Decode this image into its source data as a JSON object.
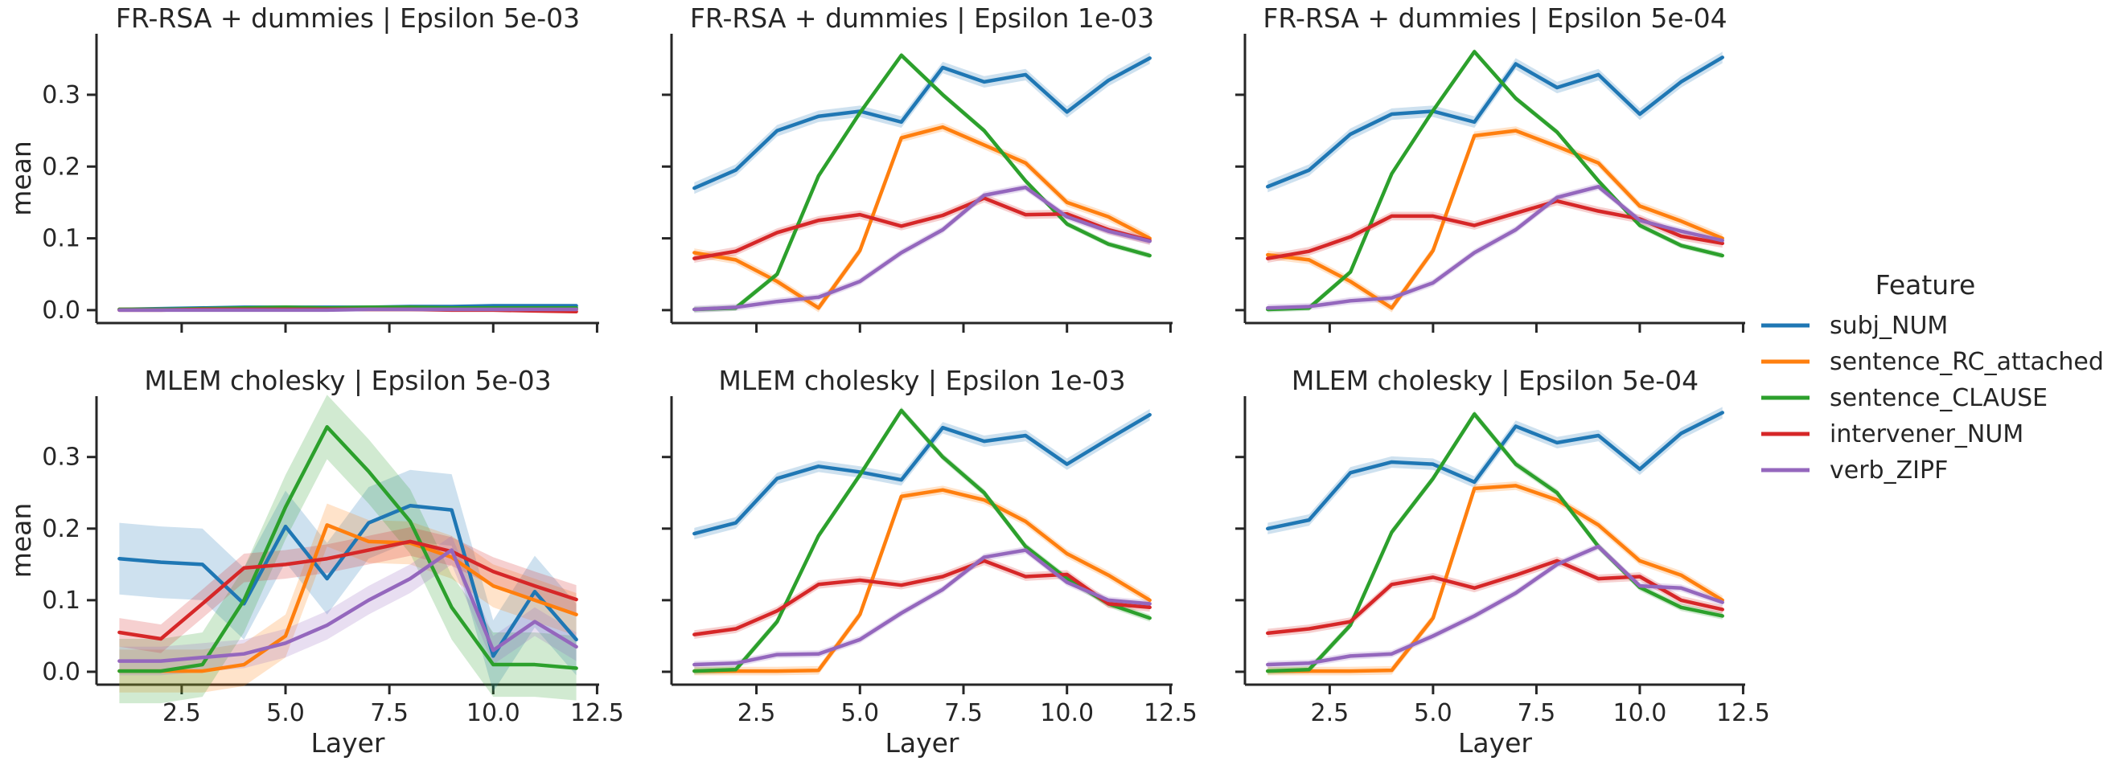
{
  "legend": {
    "title": "Feature",
    "placement": "center-right",
    "items": [
      {
        "name": "subj_NUM",
        "color": "#1f77b4"
      },
      {
        "name": "sentence_RC_attached",
        "color": "#ff7f0e"
      },
      {
        "name": "sentence_CLAUSE",
        "color": "#2ca02c"
      },
      {
        "name": "intervener_NUM",
        "color": "#d62728"
      },
      {
        "name": "verb_ZIPF",
        "color": "#9467bd"
      }
    ]
  },
  "chart_data": [
    {
      "type": "line",
      "title": "FR-RSA + dummies | Epsilon 5e-03",
      "xlabel": "",
      "ylabel": "mean",
      "xlim": [
        0.45,
        12.55
      ],
      "ylim": [
        -0.018,
        0.385
      ],
      "xticks": [
        "2.5",
        "5.0",
        "7.5",
        "10.0",
        "12.5"
      ],
      "yticks": [
        "0.0",
        "0.1",
        "0.2",
        "0.3"
      ],
      "x": [
        1,
        2,
        3,
        4,
        5,
        6,
        7,
        8,
        9,
        10,
        11,
        12
      ],
      "series": [
        {
          "name": "subj_NUM",
          "values": [
            0.001,
            0.002,
            0.003,
            0.004,
            0.004,
            0.004,
            0.004,
            0.005,
            0.005,
            0.006,
            0.006,
            0.006
          ],
          "band": 0.002
        },
        {
          "name": "sentence_RC_attached",
          "values": [
            0.001,
            0.001,
            0.001,
            0.001,
            0.001,
            0.001,
            0.001,
            0.001,
            0.001,
            0.001,
            0.001,
            0.001
          ],
          "band": 0.001
        },
        {
          "name": "sentence_CLAUSE",
          "values": [
            0.001,
            0.001,
            0.002,
            0.003,
            0.004,
            0.003,
            0.004,
            0.004,
            0.003,
            0.003,
            0.003,
            0.003
          ],
          "band": 0.001
        },
        {
          "name": "intervener_NUM",
          "values": [
            0.0,
            0.0,
            0.001,
            0.001,
            0.001,
            0.001,
            0.001,
            0.001,
            0.0,
            0.0,
            -0.001,
            -0.002
          ],
          "band": 0.001
        },
        {
          "name": "verb_ZIPF",
          "values": [
            0.0,
            0.0,
            0.0,
            0.0,
            0.0,
            0.0,
            0.001,
            0.001,
            0.001,
            0.001,
            0.001,
            0.001
          ],
          "band": 0.001
        }
      ]
    },
    {
      "type": "line",
      "title": "FR-RSA + dummies | Epsilon 1e-03",
      "xlabel": "",
      "ylabel": "",
      "xlim": [
        0.45,
        12.55
      ],
      "ylim": [
        -0.018,
        0.385
      ],
      "xticks": [
        "2.5",
        "5.0",
        "7.5",
        "10.0",
        "12.5"
      ],
      "yticks": [
        "0.0",
        "0.1",
        "0.2",
        "0.3"
      ],
      "x": [
        1,
        2,
        3,
        4,
        5,
        6,
        7,
        8,
        9,
        10,
        11,
        12
      ],
      "series": [
        {
          "name": "subj_NUM",
          "values": [
            0.17,
            0.195,
            0.25,
            0.27,
            0.277,
            0.262,
            0.338,
            0.318,
            0.328,
            0.276,
            0.32,
            0.351
          ],
          "band": 0.008
        },
        {
          "name": "sentence_RC_attached",
          "values": [
            0.08,
            0.07,
            0.04,
            0.003,
            0.083,
            0.24,
            0.255,
            0.23,
            0.205,
            0.15,
            0.13,
            0.1
          ],
          "band": 0.006
        },
        {
          "name": "sentence_CLAUSE",
          "values": [
            0.001,
            0.003,
            0.05,
            0.187,
            0.275,
            0.355,
            0.3,
            0.25,
            0.18,
            0.12,
            0.092,
            0.076
          ],
          "band": 0.004
        },
        {
          "name": "intervener_NUM",
          "values": [
            0.072,
            0.082,
            0.108,
            0.125,
            0.133,
            0.117,
            0.132,
            0.156,
            0.133,
            0.134,
            0.112,
            0.097
          ],
          "band": 0.006
        },
        {
          "name": "verb_ZIPF",
          "values": [
            0.001,
            0.004,
            0.012,
            0.018,
            0.04,
            0.08,
            0.112,
            0.16,
            0.171,
            0.13,
            0.11,
            0.096
          ],
          "band": 0.005
        }
      ]
    },
    {
      "type": "line",
      "title": "FR-RSA + dummies | Epsilon 5e-04",
      "xlabel": "",
      "ylabel": "",
      "xlim": [
        0.45,
        12.55
      ],
      "ylim": [
        -0.018,
        0.385
      ],
      "xticks": [
        "2.5",
        "5.0",
        "7.5",
        "10.0",
        "12.5"
      ],
      "yticks": [
        "0.0",
        "0.1",
        "0.2",
        "0.3"
      ],
      "x": [
        1,
        2,
        3,
        4,
        5,
        6,
        7,
        8,
        9,
        10,
        11,
        12
      ],
      "series": [
        {
          "name": "subj_NUM",
          "values": [
            0.172,
            0.195,
            0.245,
            0.273,
            0.277,
            0.262,
            0.343,
            0.31,
            0.328,
            0.273,
            0.318,
            0.352
          ],
          "band": 0.008
        },
        {
          "name": "sentence_RC_attached",
          "values": [
            0.077,
            0.07,
            0.04,
            0.003,
            0.083,
            0.243,
            0.25,
            0.228,
            0.205,
            0.145,
            0.124,
            0.1
          ],
          "band": 0.006
        },
        {
          "name": "sentence_CLAUSE",
          "values": [
            0.001,
            0.003,
            0.053,
            0.19,
            0.278,
            0.36,
            0.295,
            0.248,
            0.18,
            0.118,
            0.09,
            0.076
          ],
          "band": 0.004
        },
        {
          "name": "intervener_NUM",
          "values": [
            0.072,
            0.082,
            0.102,
            0.131,
            0.131,
            0.118,
            0.135,
            0.152,
            0.138,
            0.127,
            0.103,
            0.093
          ],
          "band": 0.006
        },
        {
          "name": "verb_ZIPF",
          "values": [
            0.003,
            0.005,
            0.013,
            0.017,
            0.038,
            0.08,
            0.112,
            0.157,
            0.172,
            0.125,
            0.11,
            0.097
          ],
          "band": 0.005
        }
      ]
    },
    {
      "type": "line",
      "title": "MLEM cholesky | Epsilon 5e-03",
      "xlabel": "Layer",
      "ylabel": "mean",
      "xlim": [
        0.45,
        12.55
      ],
      "ylim": [
        -0.018,
        0.385
      ],
      "xticks": [
        "2.5",
        "5.0",
        "7.5",
        "10.0",
        "12.5"
      ],
      "yticks": [
        "0.0",
        "0.1",
        "0.2",
        "0.3"
      ],
      "x": [
        1,
        2,
        3,
        4,
        5,
        6,
        7,
        8,
        9,
        10,
        11,
        12
      ],
      "series": [
        {
          "name": "subj_NUM",
          "values": [
            0.158,
            0.153,
            0.15,
            0.095,
            0.203,
            0.13,
            0.208,
            0.232,
            0.226,
            0.022,
            0.112,
            0.045
          ],
          "band": 0.05
        },
        {
          "name": "sentence_RC_attached",
          "values": [
            0.001,
            0.001,
            0.001,
            0.01,
            0.05,
            0.205,
            0.182,
            0.18,
            0.16,
            0.12,
            0.1,
            0.08
          ],
          "band": 0.03
        },
        {
          "name": "sentence_CLAUSE",
          "values": [
            0.001,
            0.001,
            0.01,
            0.1,
            0.23,
            0.342,
            0.28,
            0.21,
            0.09,
            0.01,
            0.01,
            0.005
          ],
          "band": 0.045
        },
        {
          "name": "intervener_NUM",
          "values": [
            0.055,
            0.046,
            0.095,
            0.145,
            0.15,
            0.158,
            0.17,
            0.182,
            0.168,
            0.14,
            0.12,
            0.101
          ],
          "band": 0.02
        },
        {
          "name": "verb_ZIPF",
          "values": [
            0.015,
            0.015,
            0.02,
            0.025,
            0.04,
            0.065,
            0.1,
            0.13,
            0.17,
            0.03,
            0.07,
            0.035
          ],
          "band": 0.02
        }
      ]
    },
    {
      "type": "line",
      "title": "MLEM cholesky | Epsilon 1e-03",
      "xlabel": "Layer",
      "ylabel": "",
      "xlim": [
        0.45,
        12.55
      ],
      "ylim": [
        -0.018,
        0.385
      ],
      "xticks": [
        "2.5",
        "5.0",
        "7.5",
        "10.0",
        "12.5"
      ],
      "yticks": [
        "0.0",
        "0.1",
        "0.2",
        "0.3"
      ],
      "x": [
        1,
        2,
        3,
        4,
        5,
        6,
        7,
        8,
        9,
        10,
        11,
        12
      ],
      "series": [
        {
          "name": "subj_NUM",
          "values": [
            0.193,
            0.208,
            0.27,
            0.287,
            0.279,
            0.268,
            0.341,
            0.322,
            0.33,
            0.29,
            0.325,
            0.359
          ],
          "band": 0.008
        },
        {
          "name": "sentence_RC_attached",
          "values": [
            0.001,
            0.001,
            0.001,
            0.002,
            0.08,
            0.245,
            0.254,
            0.24,
            0.21,
            0.165,
            0.135,
            0.1
          ],
          "band": 0.006
        },
        {
          "name": "sentence_CLAUSE",
          "values": [
            0.001,
            0.003,
            0.07,
            0.19,
            0.275,
            0.365,
            0.3,
            0.25,
            0.175,
            0.13,
            0.095,
            0.075
          ],
          "band": 0.005
        },
        {
          "name": "intervener_NUM",
          "values": [
            0.052,
            0.06,
            0.085,
            0.122,
            0.128,
            0.121,
            0.133,
            0.155,
            0.133,
            0.136,
            0.095,
            0.09
          ],
          "band": 0.006
        },
        {
          "name": "verb_ZIPF",
          "values": [
            0.01,
            0.012,
            0.024,
            0.025,
            0.045,
            0.082,
            0.115,
            0.16,
            0.17,
            0.125,
            0.1,
            0.095
          ],
          "band": 0.005
        }
      ]
    },
    {
      "type": "line",
      "title": "MLEM cholesky | Epsilon 5e-04",
      "xlabel": "Layer",
      "ylabel": "",
      "xlim": [
        0.45,
        12.55
      ],
      "ylim": [
        -0.018,
        0.385
      ],
      "xticks": [
        "2.5",
        "5.0",
        "7.5",
        "10.0",
        "12.5"
      ],
      "yticks": [
        "0.0",
        "0.1",
        "0.2",
        "0.3"
      ],
      "x": [
        1,
        2,
        3,
        4,
        5,
        6,
        7,
        8,
        9,
        10,
        11,
        12
      ],
      "series": [
        {
          "name": "subj_NUM",
          "values": [
            0.2,
            0.212,
            0.278,
            0.293,
            0.29,
            0.265,
            0.343,
            0.32,
            0.33,
            0.283,
            0.333,
            0.362
          ],
          "band": 0.008
        },
        {
          "name": "sentence_RC_attached",
          "values": [
            0.001,
            0.001,
            0.001,
            0.002,
            0.075,
            0.256,
            0.26,
            0.24,
            0.205,
            0.155,
            0.135,
            0.1
          ],
          "band": 0.006
        },
        {
          "name": "sentence_CLAUSE",
          "values": [
            0.001,
            0.003,
            0.065,
            0.195,
            0.27,
            0.36,
            0.29,
            0.25,
            0.175,
            0.118,
            0.09,
            0.078
          ],
          "band": 0.005
        },
        {
          "name": "intervener_NUM",
          "values": [
            0.054,
            0.06,
            0.07,
            0.122,
            0.132,
            0.117,
            0.135,
            0.155,
            0.13,
            0.133,
            0.1,
            0.087
          ],
          "band": 0.006
        },
        {
          "name": "verb_ZIPF",
          "values": [
            0.01,
            0.012,
            0.022,
            0.025,
            0.05,
            0.078,
            0.11,
            0.15,
            0.175,
            0.12,
            0.117,
            0.097
          ],
          "band": 0.005
        }
      ]
    }
  ]
}
